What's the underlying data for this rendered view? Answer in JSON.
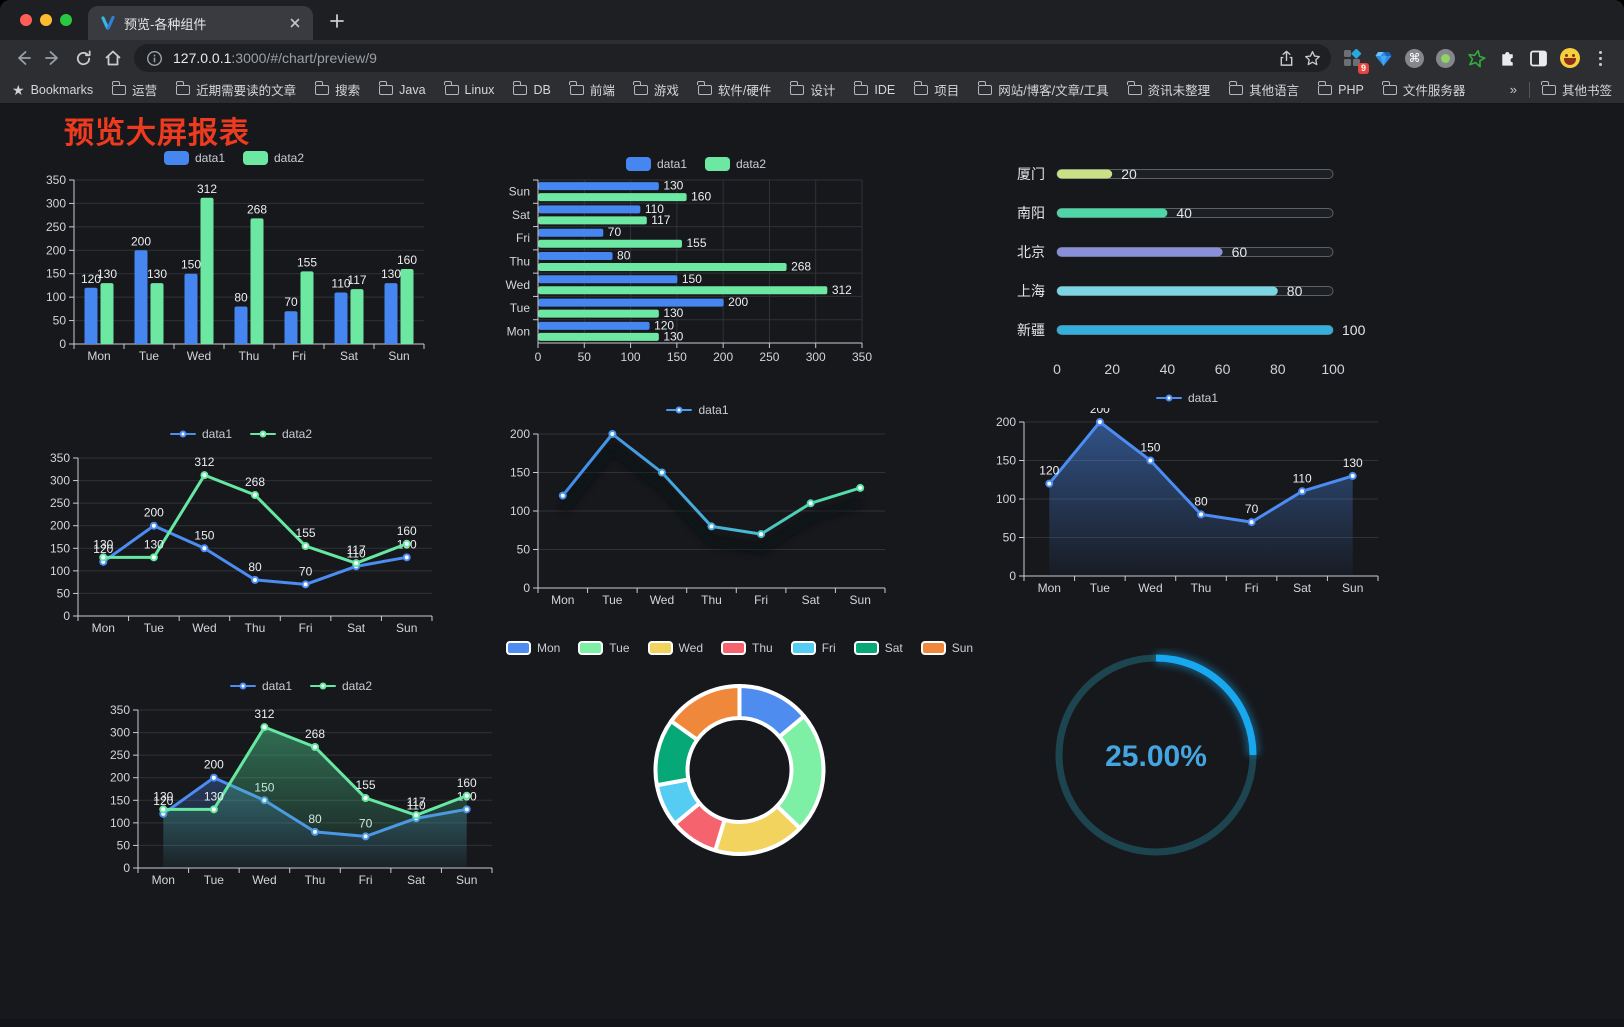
{
  "browser": {
    "traffic_lights": {
      "close": "#ff5f57",
      "minimize": "#febc2e",
      "zoom": "#28c840"
    },
    "tab": {
      "title": "预览-各种组件"
    },
    "toolbar": {
      "url_host": "127.0.0.1",
      "url_rest": ":3000/#/chart/preview/9",
      "extension_badge": "9",
      "icons": [
        "back-icon",
        "forward-icon",
        "reload-icon",
        "home-icon",
        "site-info-icon",
        "share-icon",
        "bookmark-star-icon",
        "tampermonkey-icon",
        "gem-extension-icon",
        "command-extension-icon",
        "recorder-extension-icon",
        "green-star-extension-icon",
        "extensions-puzzle-icon",
        "split-screen-extension-icon",
        "emoji-extension-icon",
        "menu-dots-icon"
      ]
    },
    "bookmarks": {
      "root_label": "Bookmarks",
      "folders": [
        "运营",
        "近期需要读的文章",
        "搜索",
        "Java",
        "Linux",
        "DB",
        "前端",
        "游戏",
        "软件/硬件",
        "设计",
        "IDE",
        "项目",
        "网站/博客/文章/工具",
        "资讯未整理",
        "其他语言",
        "PHP",
        "文件服务器"
      ],
      "overflow_label": "»",
      "other_label": "其他书签"
    }
  },
  "page": {
    "title": "预览大屏报表",
    "title_color": "#ee3b20"
  },
  "chart_data": [
    {
      "kind": "bar",
      "type": "bar",
      "categories": [
        "Mon",
        "Tue",
        "Wed",
        "Thu",
        "Fri",
        "Sat",
        "Sun"
      ],
      "series": [
        {
          "name": "data1",
          "color": "#4586f0",
          "values": [
            120,
            200,
            150,
            80,
            70,
            110,
            130
          ]
        },
        {
          "name": "data2",
          "color": "#6ce8a3",
          "values": [
            130,
            130,
            312,
            268,
            155,
            117,
            160
          ]
        }
      ],
      "ylim": [
        0,
        350
      ],
      "ystep": 50,
      "legend": true,
      "labels": true
    },
    {
      "kind": "hbar",
      "type": "bar",
      "categories": [
        "Sun",
        "Sat",
        "Fri",
        "Thu",
        "Wed",
        "Tue",
        "Mon"
      ],
      "series": [
        {
          "name": "data1",
          "color": "#4586f0",
          "values": [
            130,
            110,
            70,
            80,
            150,
            200,
            120
          ]
        },
        {
          "name": "data2",
          "color": "#6ce8a3",
          "values": [
            160,
            117,
            155,
            268,
            312,
            130,
            130
          ]
        }
      ],
      "xlim": [
        0,
        350
      ],
      "xstep": 50,
      "legend": true,
      "labels": true
    },
    {
      "kind": "progress",
      "type": "bar",
      "items": [
        {
          "label": "厦门",
          "value": 20,
          "color": "#c9e087"
        },
        {
          "label": "南阳",
          "value": 40,
          "color": "#4fd6a6"
        },
        {
          "label": "北京",
          "value": 60,
          "color": "#8a90d8"
        },
        {
          "label": "上海",
          "value": 80,
          "color": "#7bd5e3"
        },
        {
          "label": "新疆",
          "value": 100,
          "color": "#36aedc"
        }
      ],
      "max": 100,
      "ticks": [
        0,
        20,
        40,
        60,
        80,
        100
      ]
    },
    {
      "kind": "line",
      "type": "line",
      "categories": [
        "Mon",
        "Tue",
        "Wed",
        "Thu",
        "Fri",
        "Sat",
        "Sun"
      ],
      "series": [
        {
          "name": "data1",
          "color": "#4b8df2",
          "values": [
            120,
            200,
            150,
            80,
            70,
            110,
            130
          ],
          "labels": true
        },
        {
          "name": "data2",
          "color": "#67e8a2",
          "values": [
            130,
            130,
            312,
            268,
            155,
            117,
            160
          ],
          "labels": true
        }
      ],
      "ylim": [
        0,
        350
      ],
      "ystep": 50,
      "legend": true
    },
    {
      "kind": "line",
      "type": "line",
      "categories": [
        "Mon",
        "Tue",
        "Wed",
        "Thu",
        "Fri",
        "Sat",
        "Sun"
      ],
      "series": [
        {
          "name": "data1",
          "color": "#4b9af0",
          "gradient": [
            [
              "0%",
              "#3f87f0"
            ],
            [
              "55%",
              "#45b4d8"
            ],
            [
              "80%",
              "#50d8ac"
            ],
            [
              "100%",
              "#58e8a0"
            ]
          ],
          "values": [
            120,
            200,
            150,
            80,
            70,
            110,
            130
          ]
        }
      ],
      "ylim": [
        0,
        200
      ],
      "ystep": 50,
      "legend": true,
      "shadow": true
    },
    {
      "kind": "line",
      "type": "line",
      "categories": [
        "Mon",
        "Tue",
        "Wed",
        "Thu",
        "Fri",
        "Sat",
        "Sun"
      ],
      "series": [
        {
          "name": "data1",
          "color": "#4b8df2",
          "values": [
            120,
            200,
            150,
            80,
            70,
            110,
            130
          ],
          "labels": true,
          "area": "#4b8df2"
        }
      ],
      "ylim": [
        0,
        200
      ],
      "ystep": 50,
      "legend": true
    },
    {
      "kind": "line",
      "type": "area",
      "categories": [
        "Mon",
        "Tue",
        "Wed",
        "Thu",
        "Fri",
        "Sat",
        "Sun"
      ],
      "series": [
        {
          "name": "data1",
          "color": "#4b8df2",
          "values": [
            120,
            200,
            150,
            80,
            70,
            110,
            130
          ],
          "labels": true,
          "area": "#4b8df2"
        },
        {
          "name": "data2",
          "color": "#67e8a2",
          "values": [
            130,
            130,
            312,
            268,
            155,
            117,
            160
          ],
          "labels": true,
          "area": "#4fd896"
        }
      ],
      "ylim": [
        0,
        350
      ],
      "ystep": 50,
      "legend": true
    },
    {
      "kind": "pie",
      "type": "pie",
      "categories": [
        "Mon",
        "Tue",
        "Wed",
        "Thu",
        "Fri",
        "Sat",
        "Sun"
      ],
      "values": [
        120,
        200,
        150,
        80,
        70,
        110,
        130
      ],
      "colors": [
        "#4e8cf0",
        "#7df0a6",
        "#f2d35e",
        "#f5636f",
        "#55ccf2",
        "#06a878",
        "#f0883c"
      ],
      "inner_radius": 52,
      "outer_radius": 84,
      "legend": true
    },
    {
      "kind": "gauge",
      "type": "gauge",
      "value": 25,
      "label": "25.00%",
      "color": "#18a8f0",
      "track": "#1d4550",
      "text_color": "#45a5e0"
    }
  ]
}
